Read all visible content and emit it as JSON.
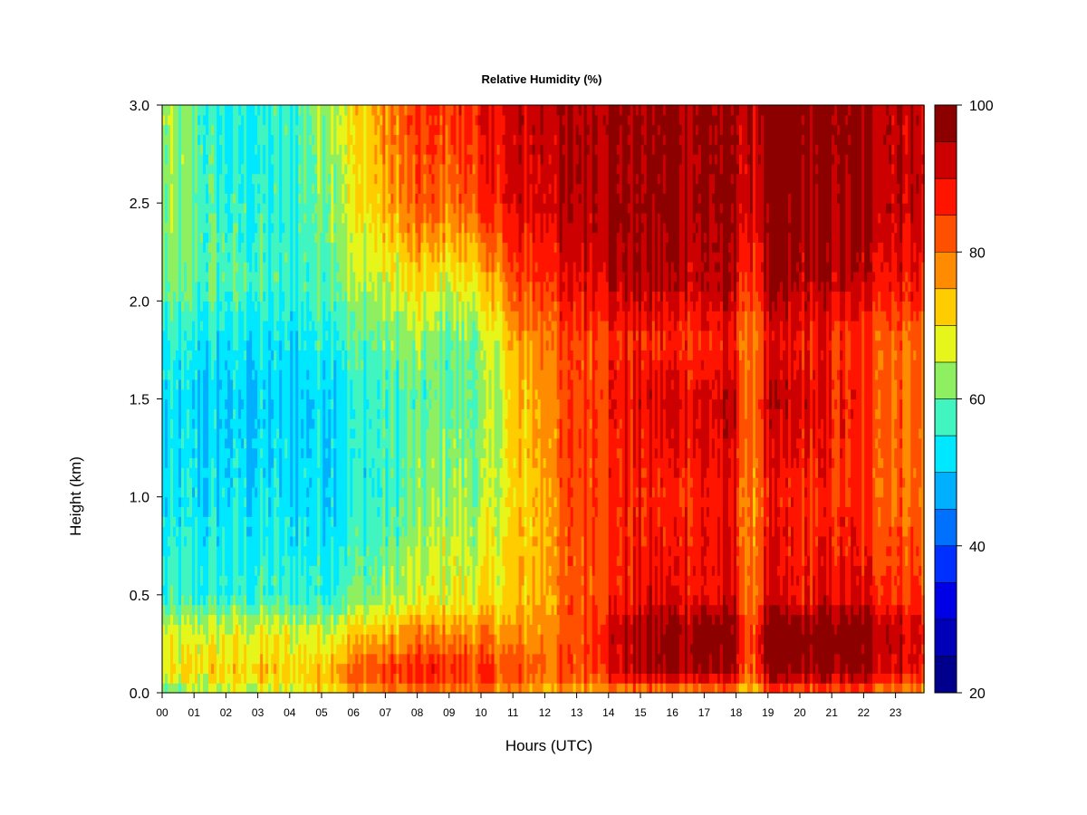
{
  "chart_data": {
    "type": "heatmap",
    "title": "Relative Humidity (%)",
    "xlabel": "Hours (UTC)",
    "ylabel": "Height (km)",
    "xlim": [
      0,
      23.9
    ],
    "ylim": [
      0.0,
      3.0
    ],
    "x_ticks": [
      "00",
      "01",
      "02",
      "03",
      "04",
      "05",
      "06",
      "07",
      "08",
      "09",
      "10",
      "11",
      "12",
      "13",
      "14",
      "15",
      "16",
      "17",
      "18",
      "19",
      "20",
      "21",
      "22",
      "23"
    ],
    "y_ticks": [
      "0.0",
      "0.5",
      "1.0",
      "1.5",
      "2.0",
      "2.5",
      "3.0"
    ],
    "colorbar": {
      "min": 20,
      "max": 100,
      "step": 5,
      "ticks": [
        "20",
        "40",
        "60",
        "80",
        "100"
      ],
      "colors": [
        "#00008c",
        "#0000b8",
        "#0000e6",
        "#0030ff",
        "#0070ff",
        "#00b0ff",
        "#00e8ff",
        "#40f5c0",
        "#8ef060",
        "#e6f51a",
        "#ffcc00",
        "#ff8c00",
        "#ff5000",
        "#ff1400",
        "#cc0000",
        "#8c0000"
      ]
    },
    "hours_keyframes": [
      0,
      2,
      4,
      5,
      6,
      7,
      8,
      9,
      10,
      11,
      12,
      13,
      14,
      15,
      16,
      17,
      18,
      18.4,
      19,
      20,
      21,
      22,
      23,
      23.9
    ],
    "heights_keyframes": [
      0.0,
      0.1,
      0.3,
      0.5,
      1.0,
      1.5,
      1.8,
      2.1,
      2.5,
      3.0
    ],
    "rh_grid": [
      [
        58,
        68,
        66,
        55,
        52,
        52,
        54,
        60,
        62,
        64
      ],
      [
        64,
        72,
        67,
        56,
        52,
        50,
        53,
        58,
        56,
        54
      ],
      [
        66,
        72,
        68,
        56,
        52,
        50,
        52,
        56,
        55,
        56
      ],
      [
        70,
        74,
        68,
        56,
        52,
        52,
        56,
        60,
        62,
        64
      ],
      [
        74,
        83,
        72,
        60,
        55,
        55,
        58,
        64,
        68,
        70
      ],
      [
        77,
        84,
        74,
        62,
        56,
        57,
        60,
        66,
        74,
        78
      ],
      [
        78,
        87,
        78,
        66,
        60,
        58,
        62,
        70,
        82,
        84
      ],
      [
        78,
        87,
        78,
        68,
        64,
        60,
        60,
        68,
        80,
        86
      ],
      [
        78,
        86,
        78,
        68,
        62,
        60,
        62,
        70,
        84,
        88
      ],
      [
        76,
        84,
        76,
        72,
        70,
        70,
        74,
        82,
        90,
        92
      ],
      [
        74,
        82,
        78,
        76,
        76,
        78,
        80,
        86,
        92,
        94
      ],
      [
        74,
        82,
        82,
        82,
        84,
        84,
        84,
        90,
        94,
        95
      ],
      [
        76,
        90,
        92,
        86,
        86,
        88,
        86,
        94,
        97,
        98
      ],
      [
        76,
        94,
        96,
        90,
        86,
        90,
        86,
        95,
        97,
        97
      ],
      [
        76,
        95,
        98,
        90,
        86,
        92,
        86,
        94,
        96,
        97
      ],
      [
        76,
        96,
        99,
        90,
        88,
        92,
        86,
        94,
        96,
        96
      ],
      [
        76,
        94,
        98,
        90,
        88,
        92,
        86,
        94,
        96,
        97
      ],
      [
        70,
        78,
        80,
        76,
        76,
        78,
        76,
        82,
        90,
        92
      ],
      [
        80,
        97,
        100,
        90,
        86,
        92,
        88,
        95,
        98,
        99
      ],
      [
        80,
        96,
        99,
        88,
        86,
        92,
        88,
        94,
        97,
        99
      ],
      [
        80,
        97,
        100,
        90,
        86,
        88,
        86,
        94,
        97,
        98
      ],
      [
        80,
        96,
        99,
        90,
        84,
        86,
        84,
        92,
        96,
        97
      ],
      [
        78,
        92,
        94,
        86,
        82,
        82,
        82,
        90,
        94,
        95
      ],
      [
        76,
        88,
        90,
        84,
        80,
        80,
        80,
        88,
        92,
        93
      ]
    ]
  }
}
